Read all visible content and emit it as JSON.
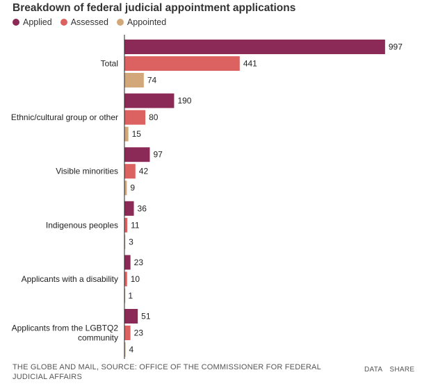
{
  "title": "Breakdown of federal judicial appointment applications",
  "legend": [
    {
      "label": "Applied",
      "color": "#8b2a57"
    },
    {
      "label": "Assessed",
      "color": "#dc6262"
    },
    {
      "label": "Appointed",
      "color": "#d2a77a"
    }
  ],
  "chart_data": {
    "type": "bar",
    "orientation": "horizontal",
    "categories": [
      "Total",
      "Ethnic/cultural group or other",
      "Visible minorities",
      "Indigenous peoples",
      "Applicants with a disability",
      "Applicants from the LGBTQ2 community"
    ],
    "series": [
      {
        "name": "Applied",
        "color": "#8b2a57",
        "values": [
          997,
          190,
          97,
          36,
          23,
          51
        ]
      },
      {
        "name": "Assessed",
        "color": "#dc6262",
        "values": [
          441,
          80,
          42,
          11,
          10,
          23
        ]
      },
      {
        "name": "Appointed",
        "color": "#d2a77a",
        "values": [
          74,
          15,
          9,
          3,
          1,
          4
        ]
      }
    ],
    "xlim": [
      0,
      1000
    ],
    "data_labels": true,
    "legend_position": "top-left"
  },
  "footer": {
    "source": "THE GLOBE AND MAIL, SOURCE: OFFICE OF THE COMMISSIONER FOR FEDERAL JUDICIAL AFFAIRS",
    "data_label": "DATA",
    "share_label": "SHARE"
  }
}
